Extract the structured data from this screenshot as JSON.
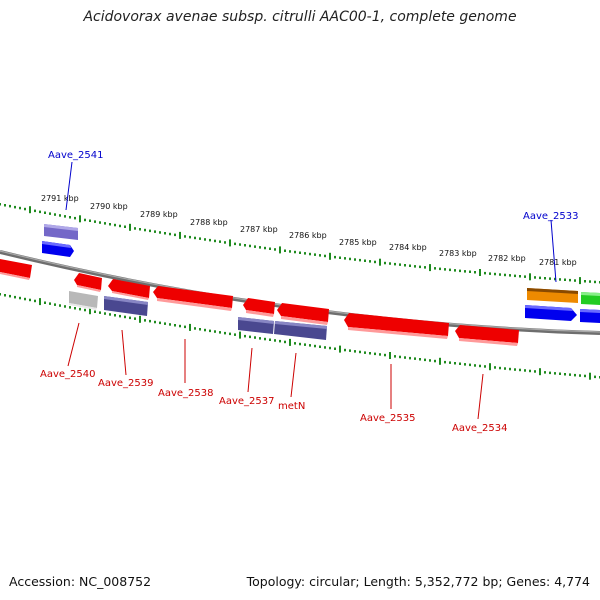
{
  "title": "Acidovorax avenae subsp. citrulli AAC00-1, complete genome",
  "accession": "Accession: NC_008752",
  "summary": "Topology: circular; Length: 5,352,772 bp; Genes: 4,774",
  "scale_labels": [
    "2791 kbp",
    "2790 kbp",
    "2789 kbp",
    "2788 kbp",
    "2787 kbp",
    "2786 kbp",
    "2785 kbp",
    "2784 kbp",
    "2783 kbp",
    "2782 kbp",
    "2781 kbp"
  ],
  "gene_labels_forward": [
    "Aave_2541",
    "Aave_2533"
  ],
  "gene_labels_reverse": [
    "Aave_2540",
    "Aave_2539",
    "Aave_2538",
    "Aave_2537",
    "metN",
    "Aave_2535",
    "Aave_2534"
  ],
  "colors": {
    "backbone": "#808080",
    "tick": "#1e8a1e",
    "label_forward": "#0000cc",
    "label_reverse": "#cc0000",
    "gene_red": "#ee0000",
    "gene_blue": "#0000ee",
    "gene_slate": "#4a4890",
    "gene_lavender": "#7468c8",
    "gene_grey": "#b8b8b8",
    "gene_orange": "#ee8a00",
    "gene_green": "#22cc22"
  }
}
